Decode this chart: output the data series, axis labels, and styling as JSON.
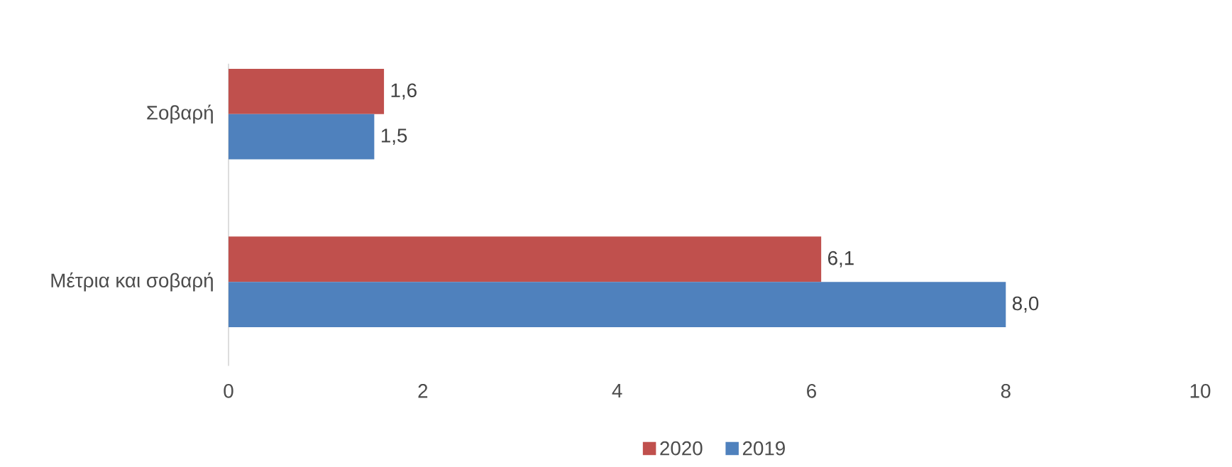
{
  "chart_data": {
    "type": "bar",
    "orientation": "horizontal",
    "categories": [
      "Σοβαρή",
      "Μέτρια και σοβαρή"
    ],
    "series": [
      {
        "name": "2020",
        "color": "#c0504d",
        "values": [
          1.6,
          6.1
        ],
        "value_labels": [
          "1,6",
          "6,1"
        ]
      },
      {
        "name": "2019",
        "color": "#4f81bd",
        "values": [
          1.5,
          8.0
        ],
        "value_labels": [
          "1,5",
          "8,0"
        ]
      }
    ],
    "xlim": [
      0,
      10
    ],
    "xticks": [
      0,
      2,
      4,
      6,
      8,
      10
    ],
    "grid": false,
    "legend": "bottom"
  }
}
